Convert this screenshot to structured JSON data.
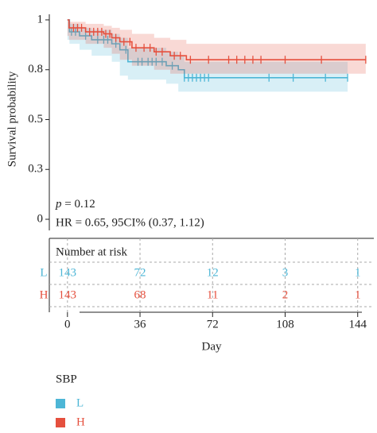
{
  "chart_data": {
    "type": "survival",
    "ylabel": "Survival probability",
    "xlabel": "Day",
    "xlim": [
      -9,
      152
    ],
    "xticks": [
      0,
      36,
      72,
      108,
      144
    ],
    "ylim": [
      0,
      1.0
    ],
    "yticks": [
      0.0,
      {
        "value": 0.25,
        "label": "0.3"
      },
      0.5,
      {
        "value": 0.75,
        "label": "0.8"
      },
      1.0
    ],
    "p_symbol": "p",
    "p_text": " = 0.12",
    "hr_text": "HR = 0.65, 95CI% (0.37, 1.12)",
    "legend_title": "SBP",
    "series": [
      {
        "name": "L",
        "color": "#4db6d6",
        "x": [
          0,
          1,
          6,
          12,
          22,
          26,
          30,
          49,
          55,
          58,
          139
        ],
        "values": [
          1.0,
          0.94,
          0.92,
          0.9,
          0.88,
          0.85,
          0.79,
          0.77,
          0.75,
          0.71,
          0.71
        ],
        "ci_upper": [
          1.0,
          0.98,
          0.96,
          0.95,
          0.93,
          0.91,
          0.86,
          0.84,
          0.82,
          0.79,
          0.79
        ],
        "ci_lower": [
          1.0,
          0.9,
          0.88,
          0.85,
          0.82,
          0.79,
          0.72,
          0.7,
          0.68,
          0.64,
          0.64
        ],
        "censor_x": [
          2,
          4,
          9,
          15,
          18,
          20,
          24,
          29,
          35,
          37,
          40,
          42,
          44,
          47,
          52,
          58,
          60,
          62,
          64,
          66,
          68,
          70,
          100,
          112,
          128,
          139
        ],
        "at_risk": [
          143,
          72,
          12,
          3,
          1
        ]
      },
      {
        "name": "H",
        "color": "#e5503e",
        "x": [
          0,
          0.8,
          9,
          18,
          22,
          26,
          32,
          43,
          51,
          59,
          148
        ],
        "values": [
          1.0,
          0.96,
          0.94,
          0.93,
          0.91,
          0.89,
          0.86,
          0.84,
          0.82,
          0.8,
          0.8
        ],
        "ci_upper": [
          1.0,
          0.99,
          0.98,
          0.97,
          0.96,
          0.95,
          0.93,
          0.91,
          0.9,
          0.88,
          0.88
        ],
        "ci_lower": [
          1.0,
          0.92,
          0.9,
          0.88,
          0.86,
          0.83,
          0.8,
          0.77,
          0.75,
          0.73,
          0.73
        ],
        "censor_x": [
          3,
          5,
          7,
          11,
          13,
          15,
          17,
          19,
          21,
          24,
          28,
          31,
          34,
          38,
          41,
          44,
          47,
          53,
          56,
          61,
          70,
          80,
          84,
          88,
          92,
          96,
          108,
          126,
          148
        ],
        "at_risk": [
          143,
          68,
          11,
          2,
          1
        ]
      }
    ],
    "risk_table_title": "Number at risk"
  }
}
